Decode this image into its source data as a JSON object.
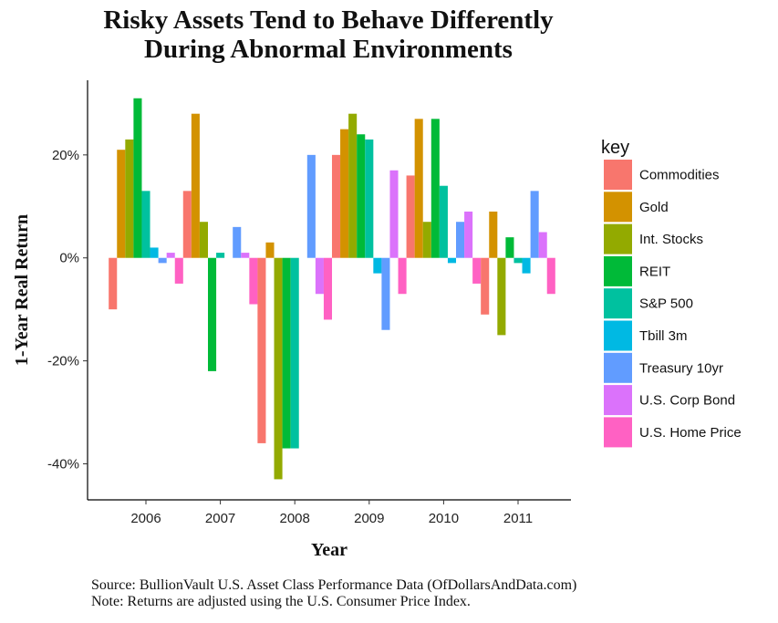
{
  "title_line1": "Risky Assets Tend to Behave Differently",
  "title_line2": "During Abnormal Environments",
  "footer": {
    "source": "Source: BullionVault U.S. Asset Class Performance Data (OfDollarsAndData.com)",
    "note": "Note: Returns are adjusted using the U.S. Consumer Price Index."
  },
  "chart_data": {
    "type": "bar",
    "xlabel": "Year",
    "ylabel": "1-Year Real Return",
    "categories": [
      "2006",
      "2007",
      "2008",
      "2009",
      "2010",
      "2011"
    ],
    "ylim": [
      -0.47,
      0.345
    ],
    "yticks": [
      0.2,
      0,
      -0.2,
      -0.4
    ],
    "ytick_labels": [
      "20%",
      "0%",
      "-20%",
      "-40%"
    ],
    "legend_title": "key",
    "legend_position": "right",
    "grid": false,
    "series": [
      {
        "name": "Commodities",
        "color": "#F8766D",
        "values": [
          -0.1,
          0.13,
          -0.36,
          0.2,
          0.16,
          -0.11
        ]
      },
      {
        "name": "Gold",
        "color": "#D39200",
        "values": [
          0.21,
          0.28,
          0.03,
          0.25,
          0.27,
          0.09
        ]
      },
      {
        "name": "Int. Stocks",
        "color": "#93AA00",
        "values": [
          0.23,
          0.07,
          -0.43,
          0.28,
          0.07,
          -0.15
        ]
      },
      {
        "name": "REIT",
        "color": "#00BA38",
        "values": [
          0.31,
          -0.22,
          -0.37,
          0.24,
          0.27,
          0.04
        ]
      },
      {
        "name": "S&P 500",
        "color": "#00C19F",
        "values": [
          0.13,
          0.01,
          -0.37,
          0.23,
          0.14,
          -0.01
        ]
      },
      {
        "name": "Tbill 3m",
        "color": "#00B9E3",
        "values": [
          0.02,
          0.0,
          0.0,
          -0.03,
          -0.01,
          -0.03
        ]
      },
      {
        "name": "Treasury 10yr",
        "color": "#619CFF",
        "values": [
          -0.01,
          0.06,
          0.2,
          -0.14,
          0.07,
          0.13
        ]
      },
      {
        "name": "U.S. Corp Bond",
        "color": "#DB72FB",
        "values": [
          0.01,
          0.01,
          -0.07,
          0.17,
          0.09,
          0.05
        ]
      },
      {
        "name": "U.S. Home Price",
        "color": "#FF61C3",
        "values": [
          -0.05,
          -0.09,
          -0.12,
          -0.07,
          -0.05,
          -0.07
        ]
      }
    ]
  }
}
